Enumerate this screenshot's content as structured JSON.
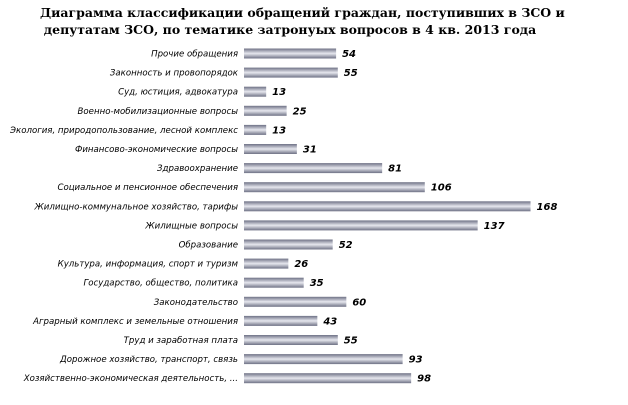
{
  "chart_data": {
    "type": "bar",
    "orientation": "horizontal",
    "title_line1": "Диаграмма классификации обращений граждан, поступивших в ЗСО и",
    "title_line2": "депутатам ЗСО,  по тематике затронуых вопросов в  4 кв. 2013 года",
    "categories": [
      "Прочие обращения",
      "Законность и провопорядок",
      "Суд, юстиция, адвокатура",
      "Военно-мобилизационные  вопросы",
      "Экология, природопользование,   лесной комплекс",
      "Финансово-экономические  вопросы",
      "Здравоохранение",
      "Социальное и пенсионное  обеспечения",
      "Жилищно-коммунальное  хозяйство, тарифы",
      "Жилищные вопросы",
      "Образование",
      "Культура, информация, спорт и туризм",
      "Государство,  общество,  политика",
      "Законодательство",
      "Аграрный комплекс и земельные  отношения",
      "Труд и заработная  плата",
      "Дорожное хозяйство, транспорт,  связь",
      "Хозяйственно-экономическая  деятельность, ..."
    ],
    "values": [
      54,
      55,
      13,
      25,
      13,
      31,
      81,
      106,
      168,
      137,
      52,
      26,
      35,
      60,
      43,
      55,
      93,
      98
    ],
    "xlim": [
      0,
      180
    ],
    "grid": false,
    "legend": "none",
    "bar_color": "#6e7185",
    "bar_highlight": "#e6e7ee"
  }
}
